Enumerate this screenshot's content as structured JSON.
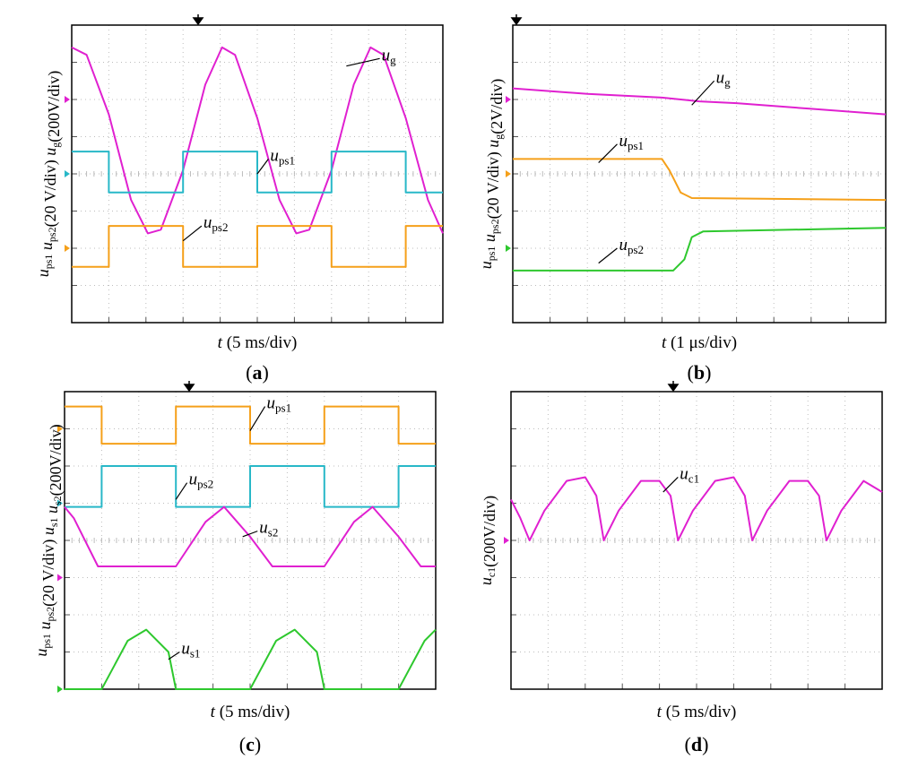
{
  "colors": {
    "magenta": "#e020d0",
    "cyan": "#28b8c8",
    "orange": "#f5a01a",
    "green": "#2ec82e",
    "grid": "#bdbdbd",
    "frame": "#000000"
  },
  "chart_data": [
    {
      "id": "a",
      "type": "line",
      "caption": "(a)",
      "xlabel": {
        "italic": "t",
        "rest": "(5 ms/div)"
      },
      "ylabel": "u_ps1 u_ps2(20 V/div)   u_g(200V/div)",
      "xlim": [
        0,
        10
      ],
      "ylim": [
        0,
        8
      ],
      "grid": true,
      "series": [
        {
          "name": "u_g",
          "label": {
            "main": "u",
            "sub": "g"
          },
          "color": "magenta",
          "channel_marker_y": 6,
          "points": [
            [
              0,
              7.4
            ],
            [
              0.4,
              7.2
            ],
            [
              1.0,
              5.6
            ],
            [
              1.6,
              3.3
            ],
            [
              2.05,
              2.4
            ],
            [
              2.4,
              2.5
            ],
            [
              3.0,
              4.1
            ],
            [
              3.6,
              6.4
            ],
            [
              4.05,
              7.4
            ],
            [
              4.4,
              7.2
            ],
            [
              5.0,
              5.5
            ],
            [
              5.6,
              3.3
            ],
            [
              6.05,
              2.4
            ],
            [
              6.4,
              2.5
            ],
            [
              7.0,
              4.1
            ],
            [
              7.6,
              6.4
            ],
            [
              8.05,
              7.4
            ],
            [
              8.4,
              7.2
            ],
            [
              9.0,
              5.5
            ],
            [
              9.6,
              3.3
            ],
            [
              10,
              2.4
            ]
          ]
        },
        {
          "name": "u_ps1",
          "label": {
            "main": "u",
            "sub": "ps1"
          },
          "color": "cyan",
          "channel_marker_y": 4,
          "points": [
            [
              0,
              4.6
            ],
            [
              1.0,
              4.6
            ],
            [
              1.0,
              3.5
            ],
            [
              3.0,
              3.5
            ],
            [
              3.0,
              4.6
            ],
            [
              5.0,
              4.6
            ],
            [
              5.0,
              3.5
            ],
            [
              7.0,
              3.5
            ],
            [
              7.0,
              4.6
            ],
            [
              9.0,
              4.6
            ],
            [
              9.0,
              3.5
            ],
            [
              10,
              3.5
            ]
          ]
        },
        {
          "name": "u_ps2",
          "label": {
            "main": "u",
            "sub": "ps2"
          },
          "color": "orange",
          "channel_marker_y": 2,
          "points": [
            [
              0,
              1.5
            ],
            [
              1.0,
              1.5
            ],
            [
              1.0,
              2.6
            ],
            [
              3.0,
              2.6
            ],
            [
              3.0,
              1.5
            ],
            [
              5.0,
              1.5
            ],
            [
              5.0,
              2.6
            ],
            [
              7.0,
              2.6
            ],
            [
              7.0,
              1.5
            ],
            [
              9.0,
              1.5
            ],
            [
              9.0,
              2.6
            ],
            [
              10,
              2.6
            ]
          ]
        }
      ]
    },
    {
      "id": "b",
      "type": "line",
      "caption": "(b)",
      "xlabel": {
        "italic": "t",
        "rest": "(1 μs/div)"
      },
      "ylabel": "u_ps1 u_ps2(20 V/div)   u_g(2V/div)",
      "xlim": [
        0,
        10
      ],
      "ylim": [
        0,
        8
      ],
      "grid": true,
      "series": [
        {
          "name": "u_g",
          "label": {
            "main": "u",
            "sub": "g"
          },
          "color": "magenta",
          "channel_marker_y": 6,
          "points": [
            [
              0,
              6.3
            ],
            [
              2,
              6.15
            ],
            [
              4,
              6.05
            ],
            [
              5,
              5.95
            ],
            [
              6,
              5.9
            ],
            [
              8,
              5.75
            ],
            [
              10,
              5.6
            ]
          ]
        },
        {
          "name": "u_ps1",
          "label": {
            "main": "u",
            "sub": "ps1"
          },
          "color": "orange",
          "channel_marker_y": 4,
          "points": [
            [
              0,
              4.4
            ],
            [
              4.0,
              4.4
            ],
            [
              4.2,
              4.1
            ],
            [
              4.5,
              3.5
            ],
            [
              4.8,
              3.35
            ],
            [
              10,
              3.3
            ]
          ]
        },
        {
          "name": "u_ps2",
          "label": {
            "main": "u",
            "sub": "ps2"
          },
          "color": "green",
          "channel_marker_y": 2,
          "points": [
            [
              0,
              1.4
            ],
            [
              4.3,
              1.4
            ],
            [
              4.6,
              1.7
            ],
            [
              4.8,
              2.3
            ],
            [
              5.1,
              2.45
            ],
            [
              10,
              2.55
            ]
          ]
        }
      ]
    },
    {
      "id": "c",
      "type": "line",
      "caption": "(c)",
      "xlabel": {
        "italic": "t",
        "rest": "(5 ms/div)"
      },
      "ylabel": "u_ps1 u_ps2(20 V/div) u_s1 u_s2(200V/div)",
      "xlim": [
        0,
        10
      ],
      "ylim": [
        0,
        8
      ],
      "grid": true,
      "series": [
        {
          "name": "u_ps1",
          "label": {
            "main": "u",
            "sub": "ps1"
          },
          "color": "orange",
          "channel_marker_y": 7,
          "points": [
            [
              0,
              7.6
            ],
            [
              1.0,
              7.6
            ],
            [
              1.0,
              6.6
            ],
            [
              3.0,
              6.6
            ],
            [
              3.0,
              7.6
            ],
            [
              5.0,
              7.6
            ],
            [
              5.0,
              6.6
            ],
            [
              7.0,
              6.6
            ],
            [
              7.0,
              7.6
            ],
            [
              9.0,
              7.6
            ],
            [
              9.0,
              6.6
            ],
            [
              10,
              6.6
            ]
          ]
        },
        {
          "name": "u_ps2",
          "label": {
            "main": "u",
            "sub": "ps2"
          },
          "color": "cyan",
          "channel_marker_y": 5,
          "points": [
            [
              0,
              4.9
            ],
            [
              1.0,
              4.9
            ],
            [
              1.0,
              6.0
            ],
            [
              3.0,
              6.0
            ],
            [
              3.0,
              4.9
            ],
            [
              5.0,
              4.9
            ],
            [
              5.0,
              6.0
            ],
            [
              7.0,
              6.0
            ],
            [
              7.0,
              4.9
            ],
            [
              9.0,
              4.9
            ],
            [
              9.0,
              6.0
            ],
            [
              10,
              6.0
            ]
          ]
        },
        {
          "name": "u_s2",
          "label": {
            "main": "u",
            "sub": "s2"
          },
          "color": "magenta",
          "channel_marker_y": 3,
          "points": [
            [
              0,
              4.9
            ],
            [
              0.25,
              4.6
            ],
            [
              0.9,
              3.3
            ],
            [
              3.0,
              3.3
            ],
            [
              3.8,
              4.5
            ],
            [
              4.3,
              4.9
            ],
            [
              5.0,
              4.1
            ],
            [
              5.6,
              3.3
            ],
            [
              7.0,
              3.3
            ],
            [
              7.8,
              4.5
            ],
            [
              8.3,
              4.9
            ],
            [
              9.0,
              4.1
            ],
            [
              9.6,
              3.3
            ],
            [
              10,
              3.3
            ]
          ]
        },
        {
          "name": "u_s1",
          "label": {
            "main": "u",
            "sub": "s1"
          },
          "color": "green",
          "channel_marker_y": 0,
          "points": [
            [
              0,
              0
            ],
            [
              1.0,
              0
            ],
            [
              1.7,
              1.3
            ],
            [
              2.2,
              1.6
            ],
            [
              2.8,
              1.0
            ],
            [
              3.0,
              0
            ],
            [
              5.0,
              0
            ],
            [
              5.7,
              1.3
            ],
            [
              6.2,
              1.6
            ],
            [
              6.8,
              1.0
            ],
            [
              7.0,
              0
            ],
            [
              9.0,
              0
            ],
            [
              9.7,
              1.3
            ],
            [
              10,
              1.6
            ]
          ]
        }
      ]
    },
    {
      "id": "d",
      "type": "line",
      "caption": "(d)",
      "xlabel": {
        "italic": "t",
        "rest": "(5 ms/div)"
      },
      "ylabel": "u_c1(200V/div)",
      "xlim": [
        0,
        10
      ],
      "ylim": [
        0,
        8
      ],
      "grid": true,
      "series": [
        {
          "name": "u_c1",
          "label": {
            "main": "u",
            "sub": "c1"
          },
          "color": "magenta",
          "channel_marker_y": 4,
          "points": [
            [
              0,
              5.1
            ],
            [
              0.25,
              4.6
            ],
            [
              0.5,
              4.0
            ],
            [
              0.9,
              4.8
            ],
            [
              1.5,
              5.6
            ],
            [
              2.0,
              5.7
            ],
            [
              2.3,
              5.2
            ],
            [
              2.5,
              4.0
            ],
            [
              2.9,
              4.8
            ],
            [
              3.5,
              5.6
            ],
            [
              4.0,
              5.6
            ],
            [
              4.3,
              5.2
            ],
            [
              4.5,
              4.0
            ],
            [
              4.9,
              4.8
            ],
            [
              5.5,
              5.6
            ],
            [
              6.0,
              5.7
            ],
            [
              6.3,
              5.2
            ],
            [
              6.5,
              4.0
            ],
            [
              6.9,
              4.8
            ],
            [
              7.5,
              5.6
            ],
            [
              8.0,
              5.6
            ],
            [
              8.3,
              5.2
            ],
            [
              8.5,
              4.0
            ],
            [
              8.9,
              4.8
            ],
            [
              9.5,
              5.6
            ],
            [
              10,
              5.3
            ]
          ]
        }
      ]
    }
  ]
}
